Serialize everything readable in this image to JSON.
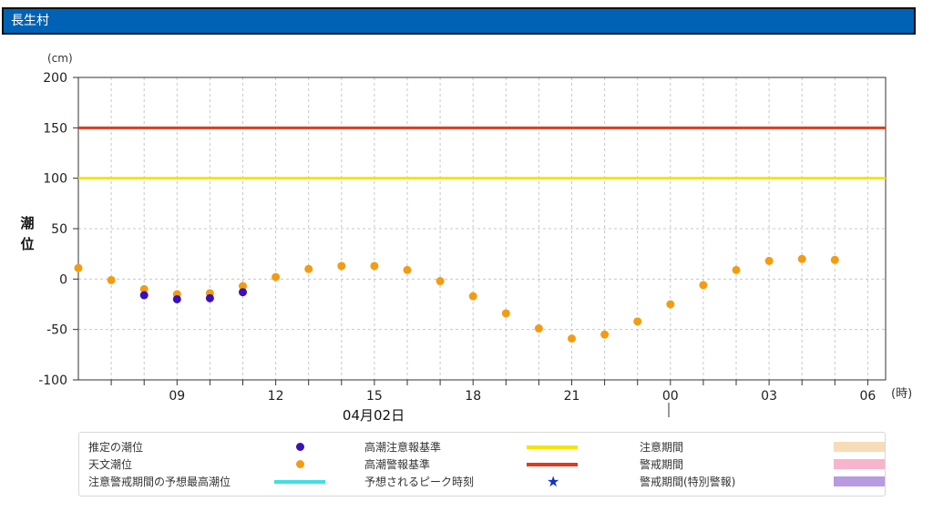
{
  "header": {
    "title": "長生村"
  },
  "chart_data": {
    "type": "scatter",
    "y_unit": "(cm)",
    "ylabel": "潮\n位",
    "x_unit": "(時)",
    "date_label": "04月02日",
    "ylim": [
      -100,
      200
    ],
    "y_ticks": [
      "200",
      "150",
      "100",
      "50",
      "0",
      "-50",
      "-100"
    ],
    "x_ticks": [
      "09",
      "12",
      "15",
      "18",
      "21",
      "00",
      "03",
      "06"
    ],
    "grid": true,
    "thresholds": [
      {
        "name": "高潮警報基準",
        "value": 150,
        "color": "#e03a1e"
      },
      {
        "name": "高潮注意報基準",
        "value": 100,
        "color": "#f2e600"
      }
    ],
    "series": [
      {
        "name": "天文潮位",
        "color": "#f39c12",
        "x": [
          "07:00",
          "08:00",
          "09:00",
          "10:00",
          "11:00",
          "12:00",
          "13:00",
          "14:00",
          "15:00",
          "16:00",
          "17:00",
          "18:00",
          "19:00",
          "20:00",
          "21:00",
          "22:00",
          "23:00",
          "00:00",
          "01:00",
          "02:00",
          "03:00",
          "04:00",
          "05:00",
          "06:00"
        ],
        "values": [
          -1,
          -10,
          -15,
          -14,
          -7,
          2,
          10,
          13,
          13,
          9,
          -2,
          -17,
          -34,
          -49,
          -59,
          -55,
          -42,
          -25,
          -6,
          9,
          18,
          20,
          19,
          11
        ]
      },
      {
        "name": "推定の潮位",
        "color": "#3a10b8",
        "x": [
          "08:00",
          "09:00",
          "10:00",
          "11:00"
        ],
        "values": [
          -16,
          -20,
          -19,
          -13
        ]
      }
    ]
  },
  "legend": {
    "items": [
      {
        "label": "推定の潮位",
        "color": "#3a10b8",
        "symbol": "dot"
      },
      {
        "label": "天文潮位",
        "color": "#f39c12",
        "symbol": "dot"
      },
      {
        "label": "注意警戒期間の予想最高潮位",
        "color": "#3ee0e8",
        "symbol": "line"
      },
      {
        "label": "高潮注意報基準",
        "color": "#f2e600",
        "symbol": "line"
      },
      {
        "label": "高潮警報基準",
        "color": "#e03a1e",
        "symbol": "line"
      },
      {
        "label": "予想されるピーク時刻",
        "color": "#1530c8",
        "symbol": "star",
        "glyph": "★"
      },
      {
        "label": "注意期間",
        "color": "#f8dcb8",
        "symbol": "rect"
      },
      {
        "label": "警戒期間",
        "color": "#f8b4cc",
        "symbol": "rect"
      },
      {
        "label": "警戒期間(特別警報)",
        "color": "#b89ae0",
        "symbol": "rect"
      }
    ]
  }
}
